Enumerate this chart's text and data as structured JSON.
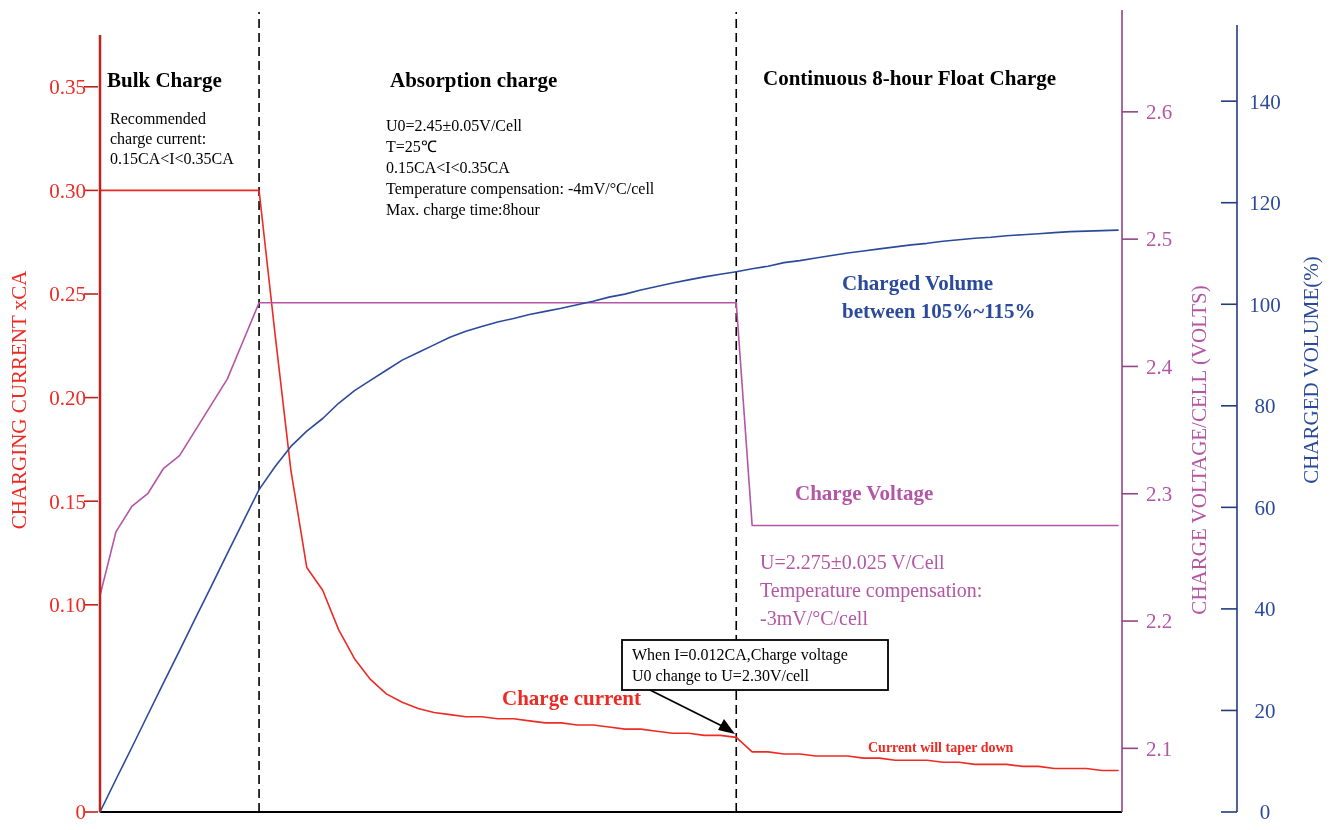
{
  "chart_data": {
    "type": "line",
    "categories": [
      null,
      null,
      null,
      null,
      null,
      null,
      null,
      null,
      null,
      null,
      null,
      null,
      null,
      null,
      null,
      null,
      null,
      null,
      null,
      null,
      null,
      null,
      null,
      null,
      null,
      null,
      null,
      null,
      null,
      null,
      null,
      null,
      null,
      null,
      null,
      null,
      null,
      null,
      null,
      null,
      null,
      null,
      null,
      null,
      null,
      null,
      null,
      null,
      null,
      null,
      null,
      null,
      null,
      null,
      null,
      null,
      null,
      null,
      null,
      null,
      null,
      null,
      null,
      null,
      null
    ],
    "ylabel": "CHARGING  CURRENT xCA",
    "y2label": "CHARGE VOLTAGE/CELL (VOLTS)",
    "y3label": "CHARGED VOLUME(%)",
    "ylim": [
      0,
      0.375
    ],
    "yticks": [
      0,
      {
        "value": 0.1,
        "label": "0.10"
      },
      {
        "value": 0.15,
        "label": "0.15"
      },
      {
        "value": 0.2,
        "label": "0.20"
      },
      {
        "value": 0.25,
        "label": "0.25"
      },
      {
        "value": 0.3,
        "label": "0.30"
      },
      {
        "value": 0.35,
        "label": "0.35"
      }
    ],
    "y2lim": [
      2.05,
      2.68
    ],
    "y2ticks": [
      2.1,
      2.2,
      2.3,
      2.4,
      2.5,
      2.6
    ],
    "y3lim": [
      0,
      155
    ],
    "y3ticks": [
      0,
      20,
      40,
      60,
      80,
      100,
      120,
      140
    ],
    "series": [
      {
        "name": "Charge current",
        "color": "#ee2a24",
        "values": [
          0.3,
          0.3,
          0.3,
          0.3,
          0.3,
          0.3,
          0.3,
          0.3,
          0.3,
          0.3,
          0.3,
          0.231,
          0.165,
          0.118,
          0.107,
          0.088,
          0.074,
          0.064,
          0.057,
          0.053,
          0.05,
          0.048,
          0.047,
          0.046,
          0.046,
          0.045,
          0.045,
          0.044,
          0.043,
          0.043,
          0.042,
          0.042,
          0.041,
          0.04,
          0.04,
          0.039,
          0.038,
          0.038,
          0.037,
          0.037,
          0.036,
          0.029,
          0.029,
          0.028,
          0.028,
          0.027,
          0.027,
          0.027,
          0.026,
          0.026,
          0.025,
          0.025,
          0.025,
          0.024,
          0.024,
          0.023,
          0.023,
          0.023,
          0.022,
          0.022,
          0.021,
          0.021,
          0.021,
          0.02,
          0.02
        ]
      },
      {
        "name": "Charge Voltage",
        "color": "#b456a6",
        "axis": "y2",
        "values": [
          2.22,
          2.27,
          2.29,
          2.3,
          2.32,
          2.33,
          2.35,
          2.37,
          2.39,
          2.42,
          2.45,
          2.45,
          2.45,
          2.45,
          2.45,
          2.45,
          2.45,
          2.45,
          2.45,
          2.45,
          2.45,
          2.45,
          2.45,
          2.45,
          2.45,
          2.45,
          2.45,
          2.45,
          2.45,
          2.45,
          2.45,
          2.45,
          2.45,
          2.45,
          2.45,
          2.45,
          2.45,
          2.45,
          2.45,
          2.45,
          2.45,
          2.275,
          2.275,
          2.275,
          2.275,
          2.275,
          2.275,
          2.275,
          2.275,
          2.275,
          2.275,
          2.275,
          2.275,
          2.275,
          2.275,
          2.275,
          2.275,
          2.275,
          2.275,
          2.275,
          2.275,
          2.275,
          2.275,
          2.275,
          2.275
        ]
      },
      {
        "name": "Charged Volume\nbetween 105%~115%",
        "color": "#2b4a9b",
        "axis": "y3",
        "values": [
          0,
          6.4,
          12.7,
          19.1,
          25.5,
          31.8,
          38.2,
          44.5,
          50.9,
          57.2,
          63.5,
          68,
          72,
          75,
          77.5,
          80.5,
          83,
          85,
          87,
          89,
          90.5,
          92,
          93.5,
          94.7,
          95.6,
          96.5,
          97.2,
          98,
          98.6,
          99.2,
          99.9,
          100.6,
          101.4,
          102,
          102.8,
          103.5,
          104.2,
          104.8,
          105.4,
          105.9,
          106.4,
          107,
          107.5,
          108.2,
          108.6,
          109.1,
          109.6,
          110.1,
          110.5,
          110.9,
          111.3,
          111.7,
          112,
          112.4,
          112.7,
          113,
          113.2,
          113.5,
          113.7,
          113.9,
          114.1,
          114.3,
          114.4,
          114.5,
          114.6
        ]
      }
    ],
    "annotations": [
      "Bulk Charge",
      "Absorption charge",
      "Continuous 8-hour Float Charge",
      "Recommended\ncharge current:\n0.15CA<I<0.35CA",
      "U0=2.45±0.05V/Cell\nT=25℃\n0.15CA<I<0.35CA\nTemperature compensation: -4mV/°C/cell\nMax. charge time:8hour",
      "U=2.275±0.025 V/Cell\nTemperature compensation:\n-3mV/°C/cell",
      "When I=0.012CA,Charge voltage\nU0 change to U=2.30V/cell",
      "Current will taper down"
    ]
  }
}
